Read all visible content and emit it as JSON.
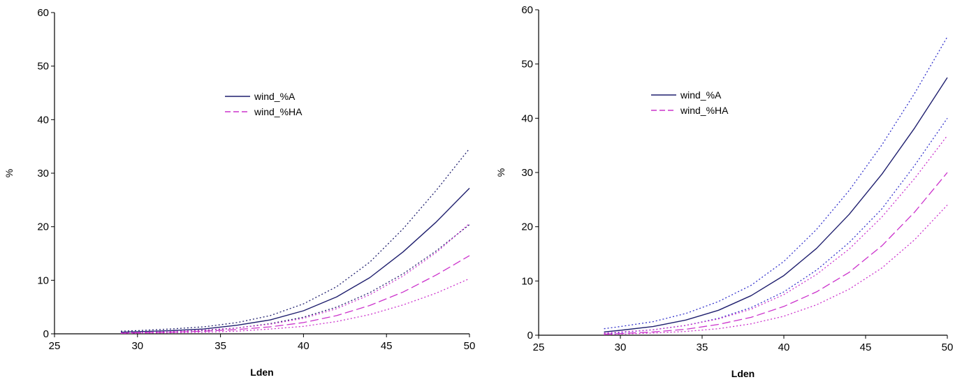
{
  "chart_data": [
    {
      "type": "line",
      "title": "",
      "xlabel": "Lden",
      "ylabel": "%",
      "xlim": [
        25,
        50
      ],
      "ylim": [
        0,
        60
      ],
      "xticks": [
        "25",
        "30",
        "35",
        "40",
        "45",
        "50"
      ],
      "yticks": [
        "0",
        "10",
        "20",
        "30",
        "40",
        "50",
        "60"
      ],
      "grid": false,
      "legend": "center",
      "x": [
        29,
        30,
        32,
        34,
        36,
        38,
        40,
        42,
        44,
        46,
        48,
        50
      ],
      "series": [
        {
          "name": "wind_%A",
          "style": "solid",
          "color": "#1f1f6e",
          "values": [
            0.3,
            0.4,
            0.6,
            0.9,
            1.6,
            2.6,
            4.3,
            6.9,
            10.5,
            15.3,
            20.9,
            27.2
          ]
        },
        {
          "name": "",
          "style": "dotted",
          "color": "#1f1f6e",
          "values": [
            0.5,
            0.6,
            0.9,
            1.3,
            2.1,
            3.4,
            5.6,
            8.8,
            13.4,
            19.6,
            26.8,
            34.6
          ]
        },
        {
          "name": "",
          "style": "dotted",
          "color": "#1f1f6e",
          "values": [
            0.2,
            0.3,
            0.4,
            0.6,
            1.1,
            1.9,
            3.1,
            5.0,
            7.7,
            11.2,
            15.5,
            20.4
          ]
        },
        {
          "name": "wind_%HA",
          "style": "dashed",
          "color": "#cc33cc",
          "values": [
            0.1,
            0.2,
            0.3,
            0.5,
            0.8,
            1.3,
            2.1,
            3.4,
            5.3,
            7.8,
            11.0,
            14.6
          ]
        },
        {
          "name": "",
          "style": "dotted",
          "color": "#cc33cc",
          "values": [
            0.2,
            0.3,
            0.4,
            0.7,
            1.1,
            1.8,
            2.9,
            4.7,
            7.3,
            10.8,
            15.2,
            20.6
          ]
        },
        {
          "name": "",
          "style": "dotted",
          "color": "#cc33cc",
          "values": [
            0.1,
            0.1,
            0.2,
            0.3,
            0.5,
            0.9,
            1.4,
            2.3,
            3.6,
            5.4,
            7.6,
            10.3
          ]
        }
      ]
    },
    {
      "type": "line",
      "title": "",
      "xlabel": "Lden",
      "ylabel": "%",
      "xlim": [
        25,
        50
      ],
      "ylim": [
        0,
        60
      ],
      "xticks": [
        "25",
        "30",
        "35",
        "40",
        "45",
        "50"
      ],
      "yticks": [
        "0",
        "10",
        "20",
        "30",
        "40",
        "50",
        "60"
      ],
      "grid": false,
      "legend": "center",
      "x": [
        29,
        30,
        32,
        34,
        36,
        38,
        40,
        42,
        44,
        46,
        48,
        50
      ],
      "series": [
        {
          "name": "wind_%A",
          "style": "solid",
          "color": "#1f1f6e",
          "values": [
            0.6,
            0.9,
            1.6,
            2.8,
            4.6,
            7.3,
            11.0,
            16.0,
            22.3,
            29.7,
            38.2,
            47.5
          ]
        },
        {
          "name": "",
          "style": "dotted",
          "color": "#3333cc",
          "values": [
            1.2,
            1.6,
            2.5,
            4.0,
            6.2,
            9.2,
            13.6,
            19.5,
            26.7,
            35.1,
            44.6,
            55.0
          ]
        },
        {
          "name": "",
          "style": "dotted",
          "color": "#3333cc",
          "values": [
            0.3,
            0.5,
            1.0,
            1.8,
            3.1,
            5.1,
            8.0,
            12.0,
            17.1,
            23.3,
            31.3,
            40.0
          ]
        },
        {
          "name": "wind_%HA",
          "style": "dashed",
          "color": "#cc33cc",
          "values": [
            0.2,
            0.3,
            0.6,
            1.1,
            2.0,
            3.3,
            5.3,
            8.0,
            11.6,
            16.5,
            22.7,
            30.0
          ]
        },
        {
          "name": "",
          "style": "dotted",
          "color": "#cc33cc",
          "values": [
            0.4,
            0.6,
            1.0,
            1.8,
            3.0,
            4.8,
            7.5,
            11.2,
            15.9,
            21.8,
            28.9,
            36.8
          ]
        },
        {
          "name": "",
          "style": "dotted",
          "color": "#cc33cc",
          "values": [
            0.1,
            0.2,
            0.4,
            0.7,
            1.2,
            2.1,
            3.5,
            5.6,
            8.5,
            12.4,
            17.6,
            24.0
          ]
        }
      ]
    }
  ]
}
